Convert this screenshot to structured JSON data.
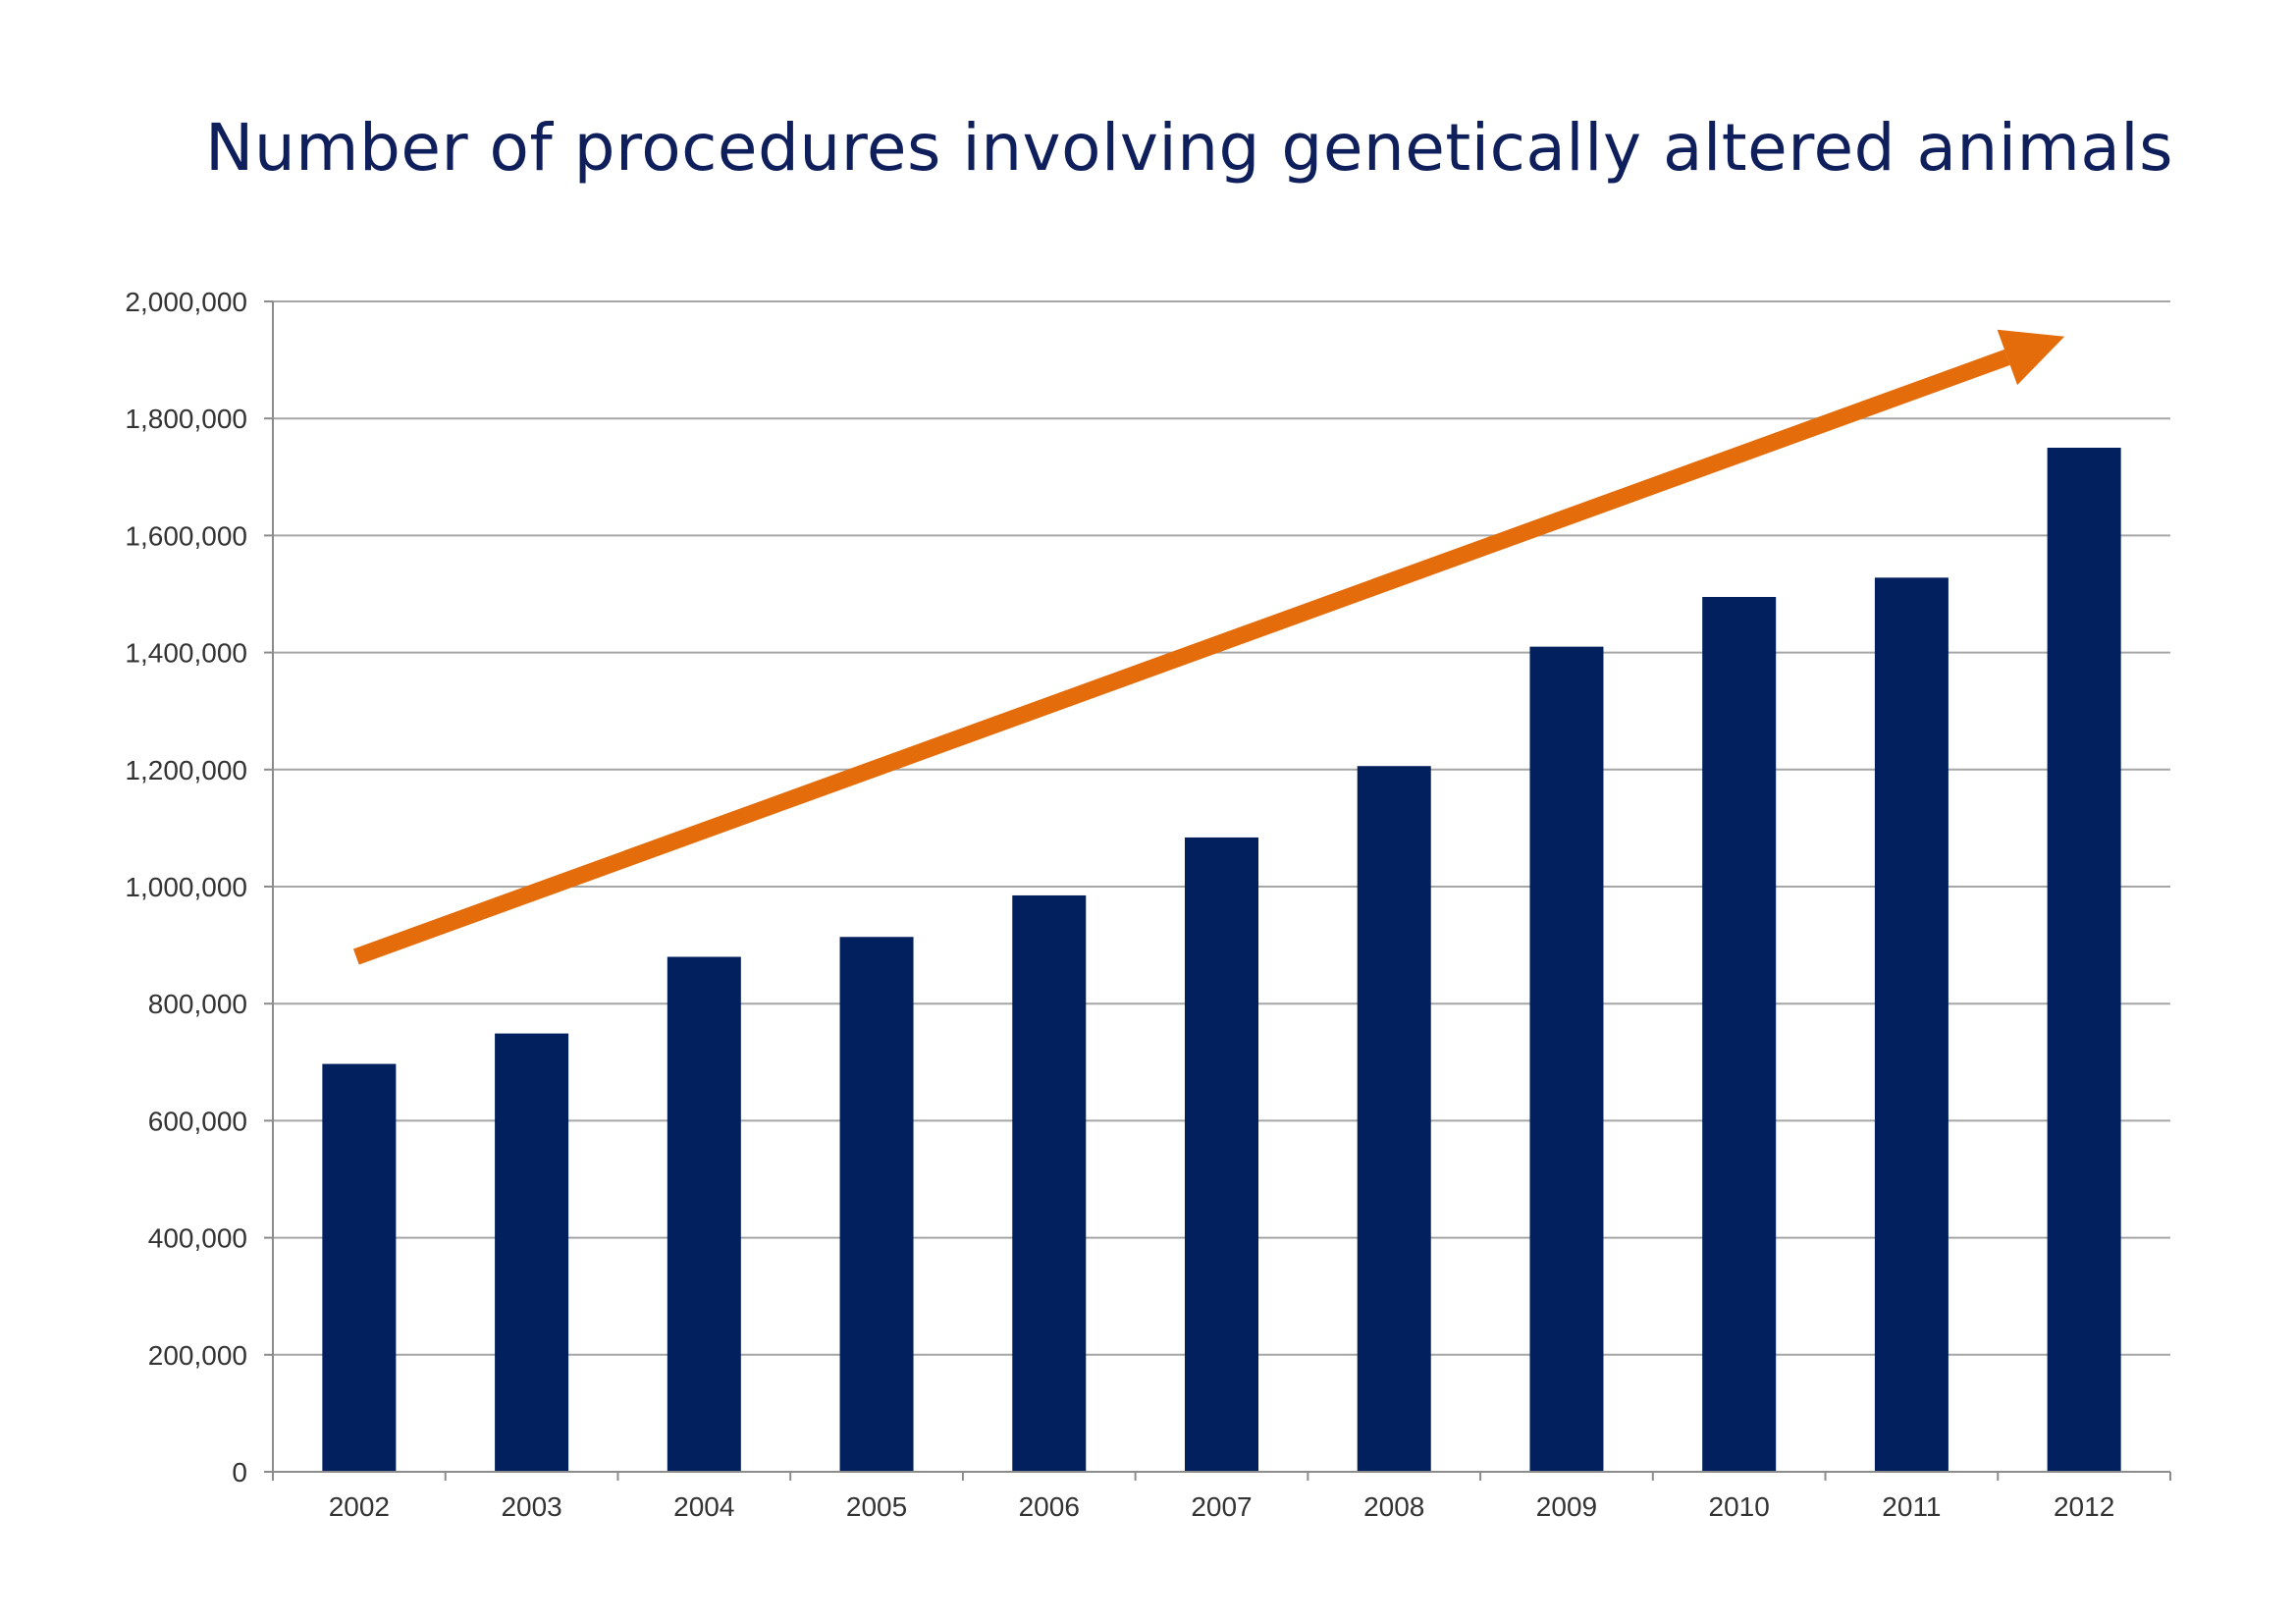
{
  "chart_data": {
    "type": "bar",
    "title": "Number of procedures involving genetically altered animals",
    "xlabel": "",
    "ylabel": "",
    "categories": [
      "2002",
      "2003",
      "2004",
      "2005",
      "2006",
      "2007",
      "2008",
      "2009",
      "2010",
      "2011",
      "2012"
    ],
    "values": [
      697000,
      749000,
      880000,
      914000,
      985000,
      1084000,
      1206000,
      1410000,
      1495000,
      1528000,
      1750000
    ],
    "ylim": [
      0,
      2000000
    ],
    "yticks": [
      0,
      200000,
      400000,
      600000,
      800000,
      1000000,
      1200000,
      1400000,
      1600000,
      1800000,
      2000000
    ],
    "ytick_labels": [
      "0",
      "200,000",
      "400,000",
      "600,000",
      "800,000",
      "1,000,000",
      "1,200,000",
      "1,400,000",
      "1,600,000",
      "1,800,000",
      "2,000,000"
    ],
    "grid": true,
    "bar_color": "#03205e",
    "trend_arrow": {
      "color": "#e46c0a",
      "from": {
        "x": "2002",
        "y": 880000
      },
      "to": {
        "x": "2012",
        "y": 1940000
      }
    }
  }
}
